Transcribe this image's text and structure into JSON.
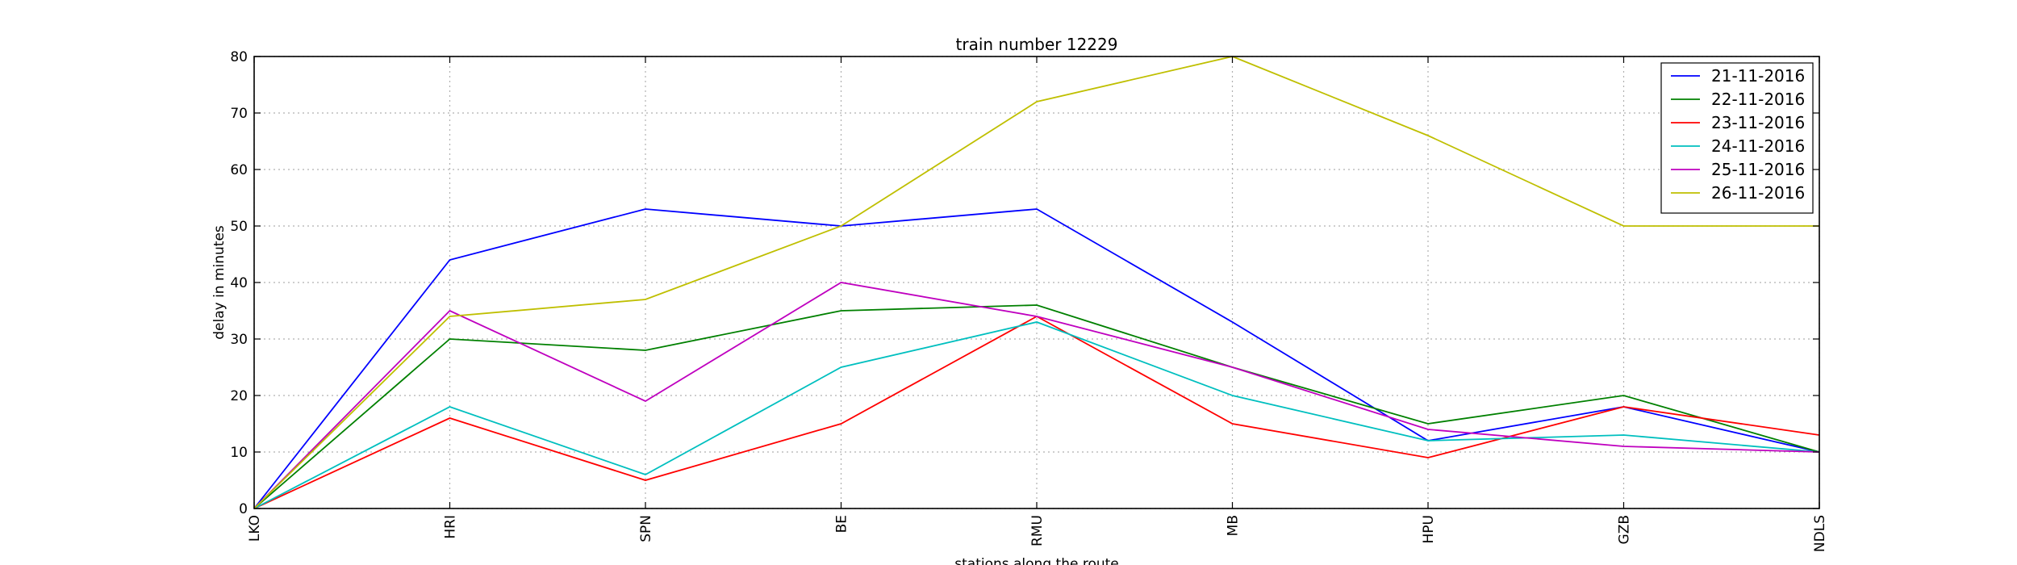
{
  "chart_data": {
    "type": "line",
    "title": "train number 12229",
    "xlabel": "stations along the route",
    "ylabel": "delay in minutes",
    "categories": [
      "LKO",
      "HRI",
      "SPN",
      "BE",
      "RMU",
      "MB",
      "HPU",
      "GZB",
      "NDLS"
    ],
    "ylim": [
      0,
      80
    ],
    "yticks": [
      0,
      10,
      20,
      30,
      40,
      50,
      60,
      70,
      80
    ],
    "grid": true,
    "legend_position": "top-right",
    "series": [
      {
        "name": "21-11-2016",
        "color": "#0000ff",
        "values": [
          0,
          44,
          53,
          50,
          53,
          33,
          12,
          18,
          10
        ]
      },
      {
        "name": "22-11-2016",
        "color": "#008000",
        "values": [
          0,
          30,
          28,
          35,
          36,
          25,
          15,
          20,
          10
        ]
      },
      {
        "name": "23-11-2016",
        "color": "#ff0000",
        "values": [
          0,
          16,
          5,
          15,
          34,
          15,
          9,
          18,
          13
        ]
      },
      {
        "name": "24-11-2016",
        "color": "#00bfbf",
        "values": [
          0,
          18,
          6,
          25,
          33,
          20,
          12,
          13,
          10
        ]
      },
      {
        "name": "25-11-2016",
        "color": "#bf00bf",
        "values": [
          0,
          35,
          19,
          40,
          34,
          25,
          14,
          11,
          10
        ]
      },
      {
        "name": "26-11-2016",
        "color": "#bfbf00",
        "values": [
          0,
          34,
          37,
          50,
          72,
          80,
          66,
          50,
          50
        ]
      }
    ]
  }
}
